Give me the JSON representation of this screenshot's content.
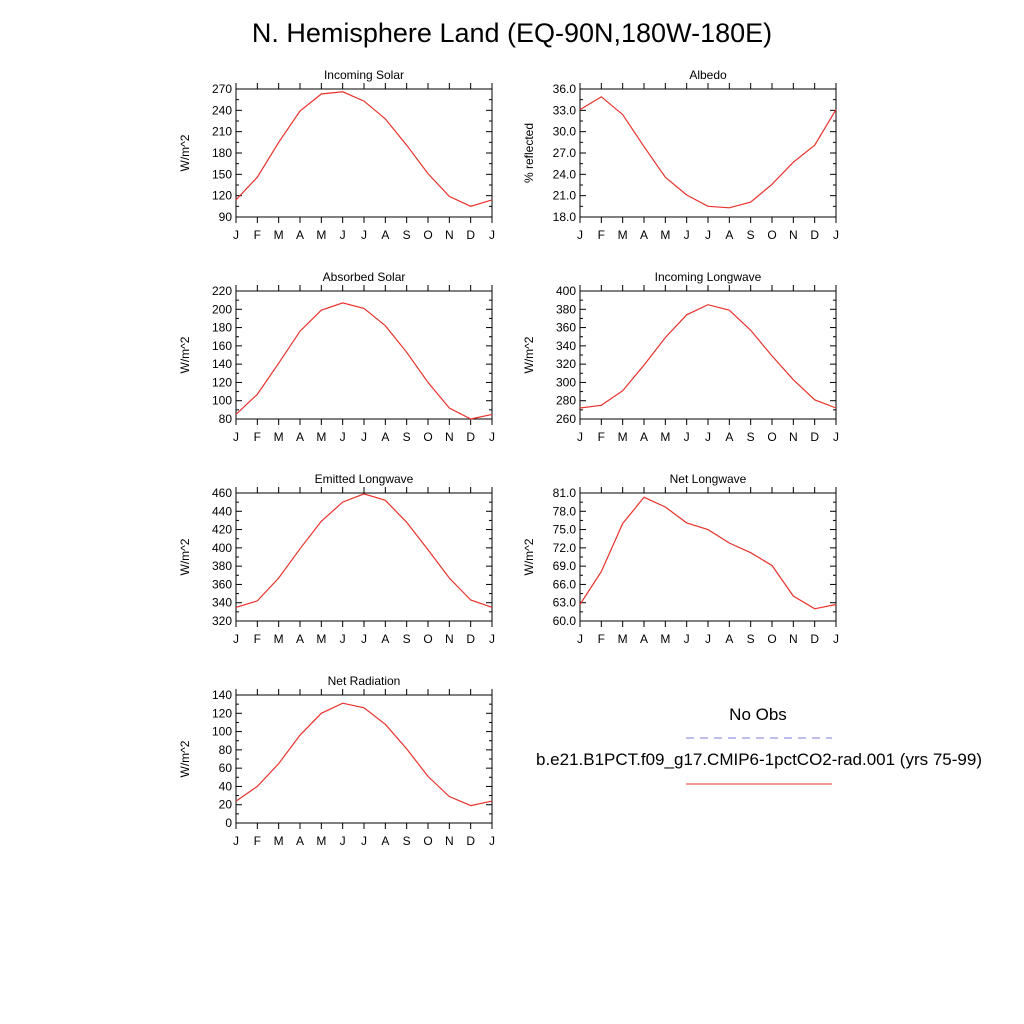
{
  "title": "N. Hemisphere Land (EQ-90N,180W-180E)",
  "month_labels": [
    "J",
    "F",
    "M",
    "A",
    "M",
    "J",
    "J",
    "A",
    "S",
    "O",
    "N",
    "D",
    "J"
  ],
  "legend": {
    "obs_label": "No Obs",
    "obs_color": "#7b7bdb",
    "model_label": "b.e21.B1PCT.f09_g17.CMIP6-1pctCO2-rad.001 (yrs 75-99)",
    "model_color": "#e8322c"
  },
  "chart_data": [
    {
      "type": "line",
      "title": "Incoming Solar",
      "ylabel": "W/m^2",
      "ylim": [
        90,
        270
      ],
      "yticks": [
        "90",
        "120",
        "150",
        "180",
        "210",
        "240",
        "270"
      ],
      "x": [
        "J",
        "F",
        "M",
        "A",
        "M",
        "J",
        "J",
        "A",
        "S",
        "O",
        "N",
        "D",
        "J"
      ],
      "series": [
        {
          "values": [
            114,
            146,
            195,
            239,
            263,
            266,
            253,
            228,
            191,
            151,
            119,
            105,
            114
          ]
        }
      ]
    },
    {
      "type": "line",
      "title": "Albedo",
      "ylabel": "% reflected",
      "ylim": [
        18,
        36
      ],
      "yticks": [
        "18.0",
        "21.0",
        "24.0",
        "27.0",
        "30.0",
        "33.0",
        "36.0"
      ],
      "x": [
        "J",
        "F",
        "M",
        "A",
        "M",
        "J",
        "J",
        "A",
        "S",
        "O",
        "N",
        "D",
        "J"
      ],
      "series": [
        {
          "values": [
            33.1,
            34.9,
            32.4,
            27.9,
            23.6,
            21.1,
            19.5,
            19.3,
            20.1,
            22.6,
            25.7,
            28.1,
            33.1
          ]
        }
      ]
    },
    {
      "type": "line",
      "title": "Absorbed Solar",
      "ylabel": "W/m^2",
      "ylim": [
        80,
        220
      ],
      "yticks": [
        "80",
        "100",
        "120",
        "140",
        "160",
        "180",
        "200",
        "220"
      ],
      "x": [
        "J",
        "F",
        "M",
        "A",
        "M",
        "J",
        "J",
        "A",
        "S",
        "O",
        "N",
        "D",
        "J"
      ],
      "series": [
        {
          "values": [
            85,
            107,
            141,
            176,
            199,
            207,
            201,
            182,
            153,
            120,
            92,
            80,
            85
          ]
        }
      ]
    },
    {
      "type": "line",
      "title": "Incoming Longwave",
      "ylabel": "W/m^2",
      "ylim": [
        260,
        400
      ],
      "yticks": [
        "260",
        "280",
        "300",
        "320",
        "340",
        "360",
        "380",
        "400"
      ],
      "x": [
        "J",
        "F",
        "M",
        "A",
        "M",
        "J",
        "J",
        "A",
        "S",
        "O",
        "N",
        "D",
        "J"
      ],
      "series": [
        {
          "values": [
            272,
            275,
            291,
            319,
            349,
            374,
            385,
            379,
            357,
            329,
            303,
            281,
            272
          ]
        }
      ]
    },
    {
      "type": "line",
      "title": "Emitted Longwave",
      "ylabel": "W/m^2",
      "ylim": [
        320,
        460
      ],
      "yticks": [
        "320",
        "340",
        "360",
        "380",
        "400",
        "420",
        "440",
        "460"
      ],
      "x": [
        "J",
        "F",
        "M",
        "A",
        "M",
        "J",
        "J",
        "A",
        "S",
        "O",
        "N",
        "D",
        "J"
      ],
      "series": [
        {
          "values": [
            335,
            342,
            367,
            399,
            429,
            450,
            459,
            452,
            428,
            398,
            367,
            343,
            335
          ]
        }
      ]
    },
    {
      "type": "line",
      "title": "Net Longwave",
      "ylabel": "W/m^2",
      "ylim": [
        60,
        81
      ],
      "yticks": [
        "60.0",
        "63.0",
        "66.0",
        "69.0",
        "72.0",
        "75.0",
        "78.0",
        "81.0"
      ],
      "x": [
        "J",
        "F",
        "M",
        "A",
        "M",
        "J",
        "J",
        "A",
        "S",
        "O",
        "N",
        "D",
        "J"
      ],
      "series": [
        {
          "values": [
            62.7,
            68.1,
            76.0,
            80.3,
            78.7,
            76.1,
            75.0,
            72.8,
            71.2,
            69.1,
            64.1,
            62.0,
            62.7
          ]
        }
      ]
    },
    {
      "type": "line",
      "title": "Net Radiation",
      "ylabel": "W/m^2",
      "ylim": [
        0,
        140
      ],
      "yticks": [
        "0",
        "20",
        "40",
        "60",
        "80",
        "100",
        "120",
        "140"
      ],
      "x": [
        "J",
        "F",
        "M",
        "A",
        "M",
        "J",
        "J",
        "A",
        "S",
        "O",
        "N",
        "D",
        "J"
      ],
      "series": [
        {
          "values": [
            24,
            40,
            65,
            96,
            120,
            131,
            126,
            108,
            81,
            51,
            29,
            19,
            24
          ]
        }
      ]
    }
  ]
}
